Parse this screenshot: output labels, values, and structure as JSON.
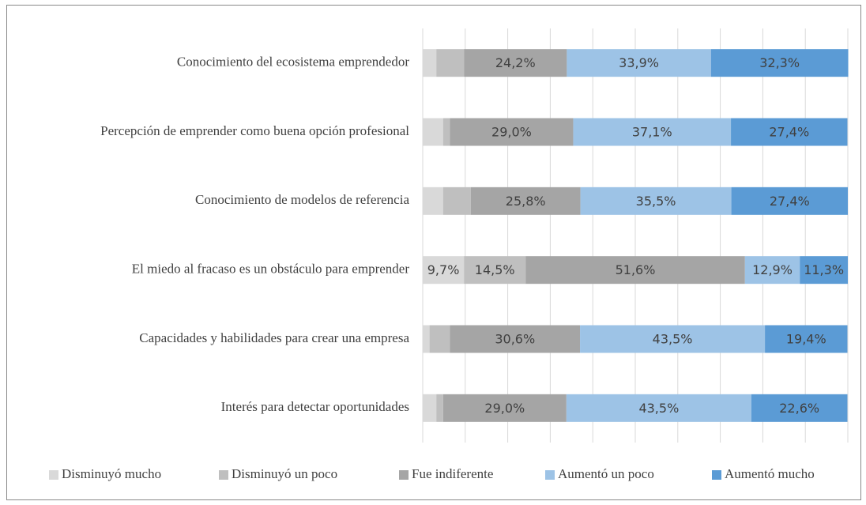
{
  "chart_data": {
    "type": "stacked_barh",
    "categories": [
      "Conocimiento del ecosistema emprendedor",
      "Percepción de emprender como buena opción profesional",
      "Conocimiento de modelos de referencia",
      "El miedo al fracaso es un obstáculo para emprender",
      "Capacidades y habilidades para crear una empresa",
      "Interés para detectar oportunidades"
    ],
    "series": [
      {
        "name": "Disminuyó mucho",
        "color": "#d9d9d9",
        "values": [
          3.2,
          4.8,
          4.8,
          9.7,
          1.6,
          3.2
        ],
        "value_labels": [
          null,
          null,
          null,
          "9,7%",
          null,
          null
        ]
      },
      {
        "name": "Disminuyó un poco",
        "color": "#bfbfbf",
        "values": [
          6.5,
          1.6,
          6.5,
          14.5,
          4.8,
          1.6
        ],
        "value_labels": [
          null,
          null,
          null,
          "14,5%",
          null,
          null
        ]
      },
      {
        "name": "Fue indiferente",
        "color": "#a5a5a5",
        "values": [
          24.2,
          29.0,
          25.8,
          51.6,
          30.6,
          29.0
        ],
        "value_labels": [
          "24,2%",
          "29,0%",
          "25,8%",
          "51,6%",
          "30,6%",
          "29,0%"
        ]
      },
      {
        "name": "Aumentó un poco",
        "color": "#9dc3e6",
        "values": [
          33.9,
          37.1,
          35.5,
          12.9,
          43.5,
          43.5
        ],
        "value_labels": [
          "33,9%",
          "37,1%",
          "35,5%",
          "12,9%",
          "43,5%",
          "43,5%"
        ]
      },
      {
        "name": "Aumentó mucho",
        "color": "#5b9bd5",
        "values": [
          32.3,
          27.4,
          27.4,
          11.3,
          19.4,
          22.6
        ],
        "value_labels": [
          "32,3%",
          "27,4%",
          "27,4%",
          "11,3%",
          "19,4%",
          "22,6%"
        ]
      }
    ],
    "xlim": [
      0,
      100
    ],
    "xticks": [
      0,
      10,
      20,
      30,
      40,
      50,
      60,
      70,
      80,
      90,
      100
    ],
    "grid": true,
    "legend": "bottom"
  }
}
